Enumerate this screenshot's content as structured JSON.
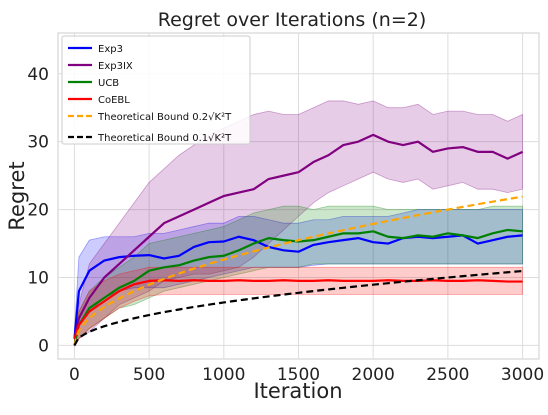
{
  "chart_data": {
    "type": "line",
    "title": "Regret over Iterations (n=2)",
    "xlabel": "Iteration",
    "ylabel": "Regret",
    "xlim": [
      -110,
      3110
    ],
    "ylim": [
      -2,
      46
    ],
    "xticks": [
      0,
      500,
      1000,
      1500,
      2000,
      2500,
      3000
    ],
    "yticks": [
      0,
      10,
      20,
      30,
      40
    ],
    "grid": true,
    "legend_position": "top-left",
    "series": [
      {
        "name": "Exp3",
        "color": "#0000ff",
        "style": "solid",
        "x": [
          0,
          30,
          100,
          200,
          300,
          400,
          500,
          600,
          700,
          800,
          900,
          1000,
          1100,
          1200,
          1300,
          1400,
          1500,
          1600,
          1700,
          1800,
          1900,
          2000,
          2100,
          2200,
          2300,
          2400,
          2500,
          2600,
          2700,
          2800,
          2900,
          3000
        ],
        "y": [
          1,
          8,
          11,
          12.5,
          13,
          13.2,
          13.3,
          12.8,
          13.2,
          14.5,
          15.2,
          15.3,
          16.0,
          15.5,
          14.5,
          14.0,
          13.8,
          14.8,
          15.2,
          15.5,
          15.8,
          15.2,
          15.0,
          15.8,
          16.0,
          15.8,
          16.0,
          16.2,
          15.0,
          15.5,
          16.0,
          16.2
        ],
        "band_lower": [
          0,
          3,
          5,
          7,
          8,
          8.5,
          8.5,
          8.5,
          9,
          9.5,
          10,
          10.5,
          11,
          11.5,
          11.5,
          11.5,
          11.5,
          11.8,
          12,
          12,
          12,
          12,
          12,
          12,
          12,
          12,
          12,
          12,
          12,
          12,
          12,
          12
        ],
        "band_upper": [
          2,
          13,
          15.5,
          16,
          16,
          16,
          16.5,
          16.5,
          17,
          17.5,
          18,
          18,
          19,
          19,
          18.5,
          18,
          18,
          18.5,
          18.5,
          19,
          19,
          19,
          19,
          19.5,
          20,
          20,
          20,
          20,
          20,
          20,
          20,
          20
        ]
      },
      {
        "name": "Exp3IX",
        "color": "#800080",
        "style": "solid",
        "x": [
          0,
          30,
          100,
          200,
          300,
          400,
          500,
          600,
          700,
          800,
          900,
          1000,
          1100,
          1200,
          1300,
          1400,
          1500,
          1600,
          1700,
          1800,
          1900,
          2000,
          2100,
          2200,
          2300,
          2400,
          2500,
          2600,
          2700,
          2800,
          2900,
          3000
        ],
        "y": [
          1,
          4,
          7,
          10,
          12,
          14,
          16,
          18,
          19,
          20,
          21,
          22,
          22.5,
          23,
          24.5,
          25,
          25.5,
          27,
          28,
          29.5,
          30,
          31,
          30,
          29.5,
          30,
          28.5,
          29,
          29.2,
          28.5,
          28.5,
          27.5,
          28.5
        ],
        "band_lower": [
          0,
          1,
          2,
          4,
          6,
          7,
          8,
          9.5,
          10,
          10.5,
          10.5,
          11,
          11.5,
          13,
          15,
          17,
          19,
          21,
          22.5,
          23.5,
          24.5,
          25.5,
          24.5,
          24,
          24.5,
          23,
          23.5,
          24,
          23,
          23,
          22.5,
          23
        ],
        "band_upper": [
          2,
          6,
          12,
          15,
          18,
          21,
          24,
          26,
          28,
          29.5,
          31,
          32,
          33,
          34,
          34.5,
          34,
          34,
          35,
          36,
          36,
          35.5,
          36,
          35,
          35,
          35.5,
          34,
          34.5,
          34.5,
          34,
          34,
          33,
          34
        ]
      },
      {
        "name": "UCB",
        "color": "#008000",
        "style": "solid",
        "x": [
          0,
          30,
          100,
          200,
          300,
          400,
          500,
          600,
          700,
          800,
          900,
          1000,
          1100,
          1200,
          1300,
          1400,
          1500,
          1600,
          1700,
          1800,
          1900,
          2000,
          2100,
          2200,
          2300,
          2400,
          2500,
          2600,
          2700,
          2800,
          2900,
          3000
        ],
        "y": [
          0,
          3,
          5.5,
          7,
          8.5,
          9.5,
          11,
          11.5,
          11.8,
          12.5,
          13,
          13.2,
          14,
          15,
          15.8,
          15.5,
          15.3,
          15.5,
          16,
          16.5,
          16.5,
          16.8,
          16,
          15.8,
          16.2,
          16.0,
          16.5,
          16.2,
          15.8,
          16.5,
          17,
          16.8
        ],
        "band_lower": [
          0,
          1,
          2.5,
          4,
          5.5,
          6,
          7,
          8,
          8.5,
          9,
          9.5,
          10,
          10.5,
          11,
          11.5,
          11.5,
          11.5,
          12,
          12,
          12,
          12,
          12,
          12,
          12,
          12,
          12,
          12,
          12,
          12,
          12,
          12,
          12
        ],
        "band_upper": [
          1,
          5,
          8,
          10,
          11.5,
          13,
          15,
          15.5,
          16,
          16.5,
          17,
          17.5,
          18.5,
          19.5,
          20,
          20.5,
          20.5,
          20,
          20.5,
          20.5,
          20.5,
          20.5,
          20,
          20,
          20,
          20,
          20,
          20,
          20,
          20.5,
          20.5,
          20.5
        ]
      },
      {
        "name": "CoEBL",
        "color": "#ff0000",
        "style": "solid",
        "x": [
          0,
          30,
          100,
          200,
          300,
          400,
          500,
          600,
          700,
          800,
          900,
          1000,
          1100,
          1200,
          1300,
          1400,
          1500,
          1600,
          1700,
          1800,
          1900,
          2000,
          2100,
          2200,
          2300,
          2400,
          2500,
          2600,
          2700,
          2800,
          2900,
          3000
        ],
        "y": [
          1,
          3,
          5,
          6.5,
          8,
          9,
          9.5,
          9.6,
          9.5,
          9.6,
          9.5,
          9.5,
          9.6,
          9.5,
          9.5,
          9.6,
          9.5,
          9.5,
          9.6,
          9.5,
          9.5,
          9.5,
          9.6,
          9.5,
          9.5,
          9.6,
          9.5,
          9.5,
          9.6,
          9.5,
          9.4,
          9.4
        ],
        "band_lower": [
          0,
          1,
          2.5,
          4,
          5.5,
          6.5,
          7.3,
          7.5,
          7.5,
          7.5,
          7.5,
          7.5,
          7.5,
          7.5,
          7.5,
          7.5,
          7.5,
          7.5,
          7.5,
          7.5,
          7.5,
          7.5,
          7.5,
          7.5,
          7.5,
          7.5,
          7.5,
          7.5,
          7.5,
          7.5,
          7.5,
          7.5
        ],
        "band_upper": [
          2,
          5,
          8,
          9.5,
          10.5,
          11,
          11.5,
          11.5,
          11.5,
          11.5,
          11.5,
          11.5,
          11.5,
          11.5,
          11.5,
          11.5,
          11.5,
          11.5,
          11.5,
          11.5,
          11.5,
          11.5,
          11.5,
          11.5,
          11.5,
          11.5,
          11.5,
          11.5,
          11.5,
          11.5,
          11.5,
          11.5
        ]
      },
      {
        "name": "Theoretical Bound 0.2",
        "color": "#ffa500",
        "style": "dashed",
        "formula": {
          "coef": 0.2,
          "K": 2
        },
        "x": [
          0,
          3000
        ]
      },
      {
        "name": "Theoretical Bound 0.1",
        "color": "#000000",
        "style": "dashed",
        "formula": {
          "coef": 0.1,
          "K": 2
        },
        "x": [
          0,
          3000
        ]
      }
    ],
    "legend_formula": "√K²T"
  }
}
